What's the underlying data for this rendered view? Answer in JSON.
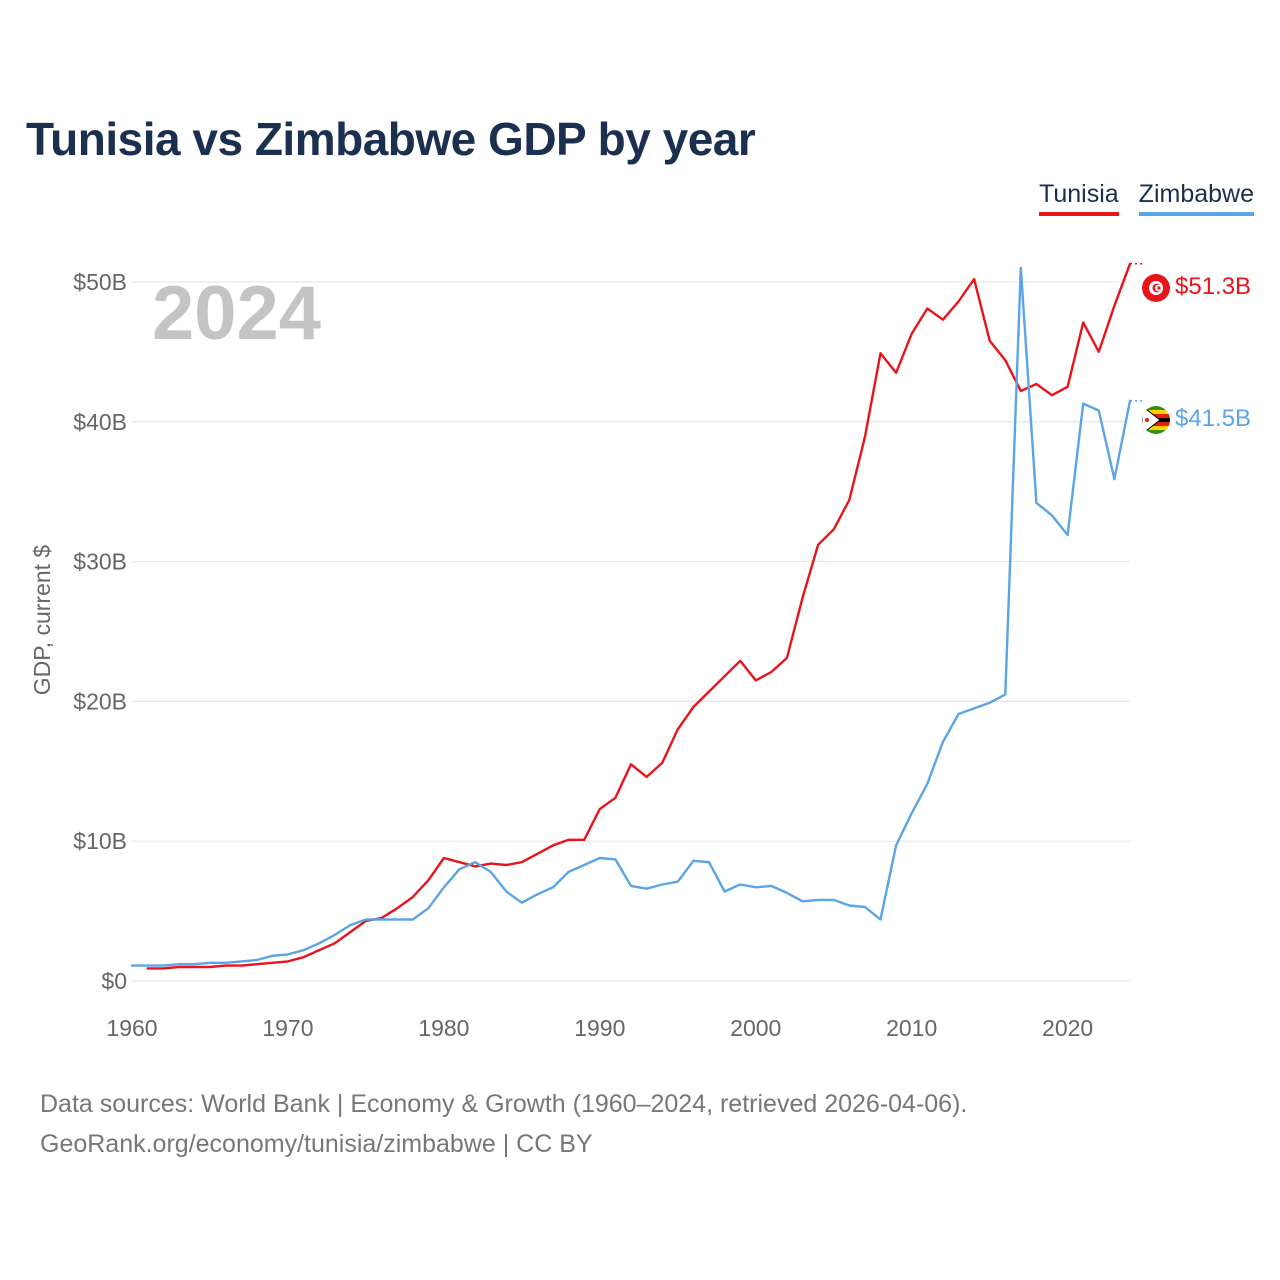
{
  "title": "Tunisia vs Zimbabwe GDP by year",
  "legend": [
    {
      "label": "Tunisia",
      "color": "#e8141c"
    },
    {
      "label": "Zimbabwe",
      "color": "#5ba4e6"
    }
  ],
  "footer": {
    "line1": "Data sources: World Bank | Economy & Growth (1960–2024, retrieved 2026-04-06).",
    "line2": "GeoRank.org/economy/tunisia/zimbabwe | CC BY"
  },
  "chart_data": {
    "type": "line",
    "title": "Tunisia vs Zimbabwe GDP by year",
    "year_label": "2024",
    "ylabel": "GDP, current $",
    "xlabel": "",
    "xlim": [
      1960,
      2024
    ],
    "ylim": [
      0,
      53
    ],
    "y_unit": "billion USD",
    "x_ticks": [
      1960,
      1970,
      1980,
      1990,
      2000,
      2010,
      2020
    ],
    "y_ticks": [
      {
        "value": 0,
        "label": "$0"
      },
      {
        "value": 10,
        "label": "$10B"
      },
      {
        "value": 20,
        "label": "$20B"
      },
      {
        "value": 30,
        "label": "$30B"
      },
      {
        "value": 40,
        "label": "$40B"
      },
      {
        "value": 50,
        "label": "$50B"
      }
    ],
    "grid": true,
    "series": [
      {
        "name": "Tunisia",
        "color": "#e8141c",
        "end_label": "$51.3B",
        "x": [
          1961,
          1962,
          1963,
          1964,
          1965,
          1966,
          1967,
          1968,
          1969,
          1970,
          1971,
          1972,
          1973,
          1974,
          1975,
          1976,
          1977,
          1978,
          1979,
          1980,
          1981,
          1982,
          1983,
          1984,
          1985,
          1986,
          1987,
          1988,
          1989,
          1990,
          1991,
          1992,
          1993,
          1994,
          1995,
          1996,
          1997,
          1998,
          1999,
          2000,
          2001,
          2002,
          2003,
          2004,
          2005,
          2006,
          2007,
          2008,
          2009,
          2010,
          2011,
          2012,
          2013,
          2014,
          2015,
          2016,
          2017,
          2018,
          2019,
          2020,
          2021,
          2022,
          2023,
          2024
        ],
        "values": [
          0.9,
          0.9,
          1.0,
          1.0,
          1.0,
          1.1,
          1.1,
          1.2,
          1.3,
          1.4,
          1.7,
          2.2,
          2.7,
          3.5,
          4.3,
          4.5,
          5.2,
          6.0,
          7.2,
          8.8,
          8.5,
          8.2,
          8.4,
          8.3,
          8.5,
          9.1,
          9.7,
          10.1,
          10.1,
          12.3,
          13.1,
          15.5,
          14.6,
          15.6,
          18.0,
          19.6,
          20.7,
          21.8,
          22.9,
          21.5,
          22.1,
          23.1,
          27.4,
          31.2,
          32.3,
          34.4,
          38.9,
          44.9,
          43.5,
          46.3,
          48.1,
          47.3,
          48.6,
          50.2,
          45.8,
          44.4,
          42.2,
          42.7,
          41.9,
          42.5,
          47.1,
          45.0,
          48.3,
          51.3
        ]
      },
      {
        "name": "Zimbabwe",
        "color": "#5ba4e6",
        "end_label": "$41.5B",
        "x": [
          1960,
          1961,
          1962,
          1963,
          1964,
          1965,
          1966,
          1967,
          1968,
          1969,
          1970,
          1971,
          1972,
          1973,
          1974,
          1975,
          1976,
          1977,
          1978,
          1979,
          1980,
          1981,
          1982,
          1983,
          1984,
          1985,
          1986,
          1987,
          1988,
          1989,
          1990,
          1991,
          1992,
          1993,
          1994,
          1995,
          1996,
          1997,
          1998,
          1999,
          2000,
          2001,
          2002,
          2003,
          2004,
          2005,
          2006,
          2007,
          2008,
          2009,
          2010,
          2011,
          2012,
          2013,
          2014,
          2015,
          2016,
          2017,
          2018,
          2019,
          2020,
          2021,
          2022,
          2023,
          2024
        ],
        "values": [
          1.1,
          1.1,
          1.1,
          1.2,
          1.2,
          1.3,
          1.3,
          1.4,
          1.5,
          1.8,
          1.9,
          2.2,
          2.7,
          3.3,
          4.0,
          4.4,
          4.4,
          4.4,
          4.4,
          5.2,
          6.7,
          8.0,
          8.5,
          7.8,
          6.4,
          5.6,
          6.2,
          6.7,
          7.8,
          8.3,
          8.8,
          8.7,
          6.8,
          6.6,
          6.9,
          7.1,
          8.6,
          8.5,
          6.4,
          6.9,
          6.7,
          6.8,
          6.3,
          5.7,
          5.8,
          5.8,
          5.4,
          5.3,
          4.4,
          9.7,
          12.0,
          14.1,
          17.1,
          19.1,
          19.5,
          19.9,
          20.5,
          51.0,
          34.2,
          33.3,
          31.9,
          41.3,
          40.8,
          35.9,
          41.5
        ]
      }
    ]
  }
}
